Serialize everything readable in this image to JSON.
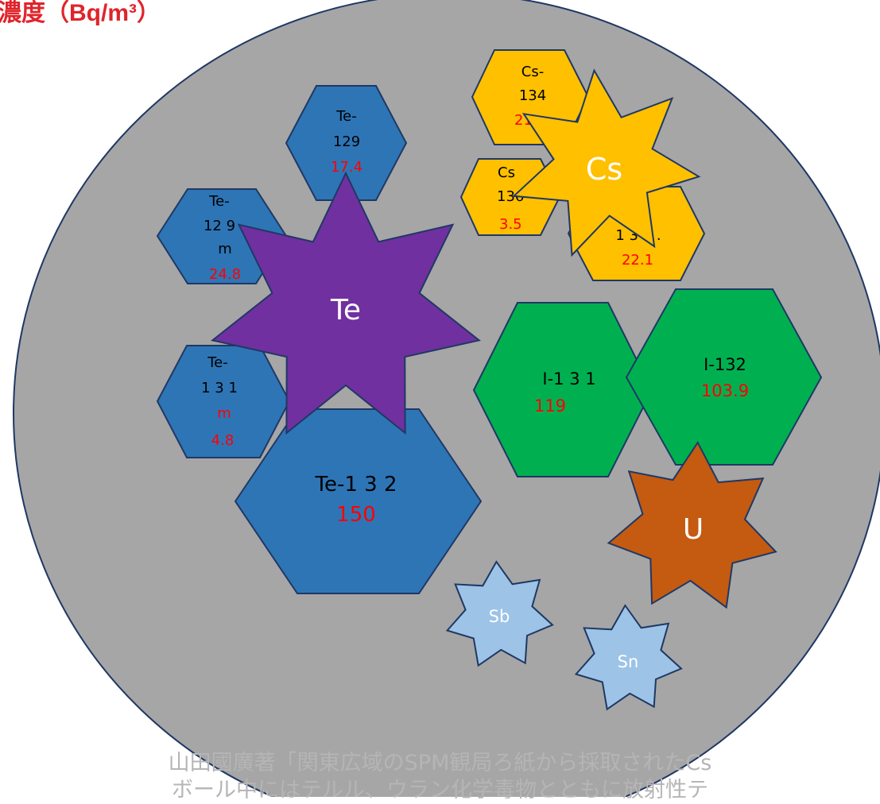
{
  "header": {
    "title": "濃度（Bq/m³）"
  },
  "nuclides": {
    "te129": {
      "label_lines": [
        "Te-",
        "129"
      ],
      "value": "17.4"
    },
    "te129m": {
      "label_lines": [
        "Te-",
        "12 9",
        "m"
      ],
      "value": "24.8"
    },
    "te131m": {
      "label_lines": [
        "Te-",
        "1 3 1",
        "m"
      ],
      "value": "4.8"
    },
    "te132": {
      "label_lines": [
        "Te-1 3 2"
      ],
      "value": "150"
    },
    "cs134": {
      "label_lines": [
        "Cs-",
        "134"
      ],
      "value": "21."
    },
    "cs136": {
      "label_lines": [
        "Cs",
        "136"
      ],
      "value": "3.5"
    },
    "cs137": {
      "label_lines": [
        "C",
        "1 3 7 ."
      ],
      "value": "22.1"
    },
    "i131": {
      "label_lines": [
        "I-1 3 1"
      ],
      "value": "119"
    },
    "i132": {
      "label_lines": [
        "I-132"
      ],
      "value": "103.9"
    }
  },
  "elements": {
    "te": {
      "label": "Te"
    },
    "cs": {
      "label": "Cs"
    },
    "u": {
      "label": "U"
    },
    "sb": {
      "label": "Sb"
    },
    "sn": {
      "label": "Sn"
    }
  },
  "colors": {
    "ball": "#a6a6a6",
    "tellurium": "#2e75b6",
    "cesium": "#ffc000",
    "iodine": "#00b050",
    "te_star": "#7030a0",
    "uranium": "#c55a11",
    "minor": "#9dc3e6",
    "value_text": "#ff0000",
    "outline": "#1f3864"
  },
  "footer": {
    "caption_line1": "山田國廣著「関東広域のSPM観局ろ紙から採取されたCs",
    "caption_line2": "ボール中にはテルル、ウラン化学毒物とともに放射性テ"
  }
}
